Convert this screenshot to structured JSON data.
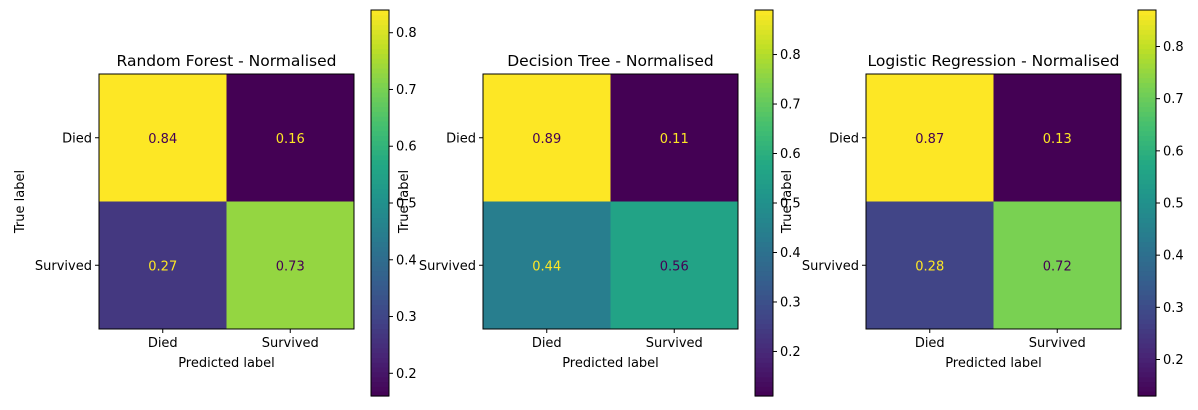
{
  "chart_data": [
    {
      "type": "heatmap",
      "title": "Random Forest - Normalised",
      "xlabel": "Predicted label",
      "ylabel": "True label",
      "x_categories": [
        "Died",
        "Survived"
      ],
      "y_categories": [
        "Died",
        "Survived"
      ],
      "values": [
        [
          0.84,
          0.16
        ],
        [
          0.27,
          0.73
        ]
      ],
      "colormap": "viridis",
      "colorbar_range": [
        0.16,
        0.84
      ],
      "colorbar_ticks": [
        0.2,
        0.3,
        0.4,
        0.5,
        0.6,
        0.7,
        0.8
      ]
    },
    {
      "type": "heatmap",
      "title": "Decision Tree - Normalised",
      "xlabel": "Predicted label",
      "ylabel": "True label",
      "x_categories": [
        "Died",
        "Survived"
      ],
      "y_categories": [
        "Died",
        "Survived"
      ],
      "values": [
        [
          0.89,
          0.11
        ],
        [
          0.44,
          0.56
        ]
      ],
      "colormap": "viridis",
      "colorbar_range": [
        0.11,
        0.89
      ],
      "colorbar_ticks": [
        0.2,
        0.3,
        0.4,
        0.5,
        0.6,
        0.7,
        0.8
      ]
    },
    {
      "type": "heatmap",
      "title": "Logistic Regression - Normalised",
      "xlabel": "Predicted label",
      "ylabel": "True label",
      "x_categories": [
        "Died",
        "Survived"
      ],
      "y_categories": [
        "Died",
        "Survived"
      ],
      "values": [
        [
          0.87,
          0.13
        ],
        [
          0.28,
          0.72
        ]
      ],
      "colormap": "viridis",
      "colorbar_range": [
        0.13,
        0.87
      ],
      "colorbar_ticks": [
        0.2,
        0.3,
        0.4,
        0.5,
        0.6,
        0.7,
        0.8
      ]
    }
  ]
}
